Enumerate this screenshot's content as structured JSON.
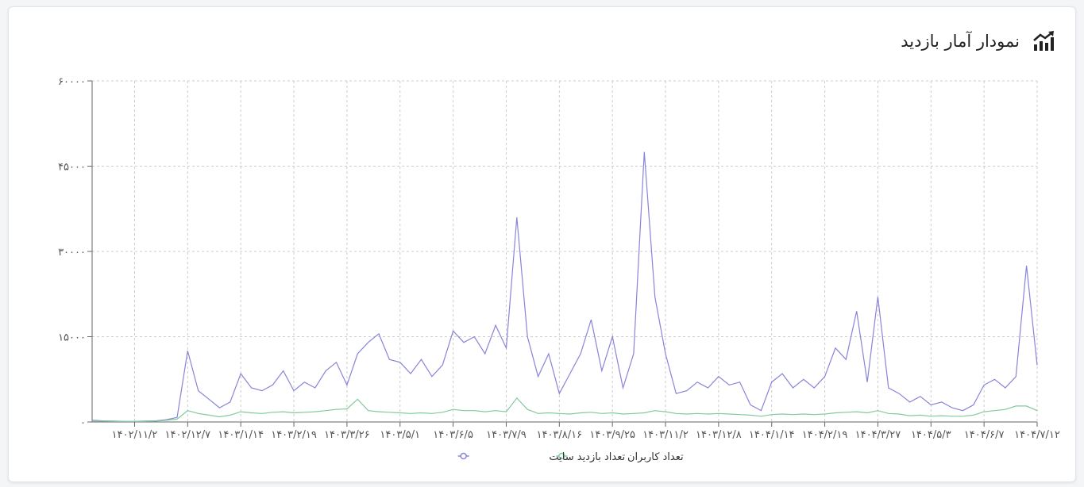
{
  "chart_data": {
    "type": "line",
    "title": "نمودار آمار بازدید",
    "categories": [
      null,
      null,
      null,
      null,
      "۱۴۰۲/۱۱/۲",
      null,
      null,
      null,
      null,
      "۱۴۰۲/۱۲/۷",
      null,
      null,
      null,
      null,
      "۱۴۰۳/۱/۱۴",
      null,
      null,
      null,
      null,
      "۱۴۰۳/۲/۱۹",
      null,
      null,
      null,
      null,
      "۱۴۰۳/۳/۲۶",
      null,
      null,
      null,
      null,
      "۱۴۰۳/۵/۱",
      null,
      null,
      null,
      null,
      "۱۴۰۳/۶/۵",
      null,
      null,
      null,
      null,
      "۱۴۰۳/۷/۹",
      null,
      null,
      null,
      null,
      "۱۴۰۳/۸/۱۶",
      null,
      null,
      null,
      null,
      "۱۴۰۳/۹/۲۵",
      null,
      null,
      null,
      null,
      "۱۴۰۳/۱۱/۲",
      null,
      null,
      null,
      null,
      "۱۴۰۳/۱۲/۸",
      null,
      null,
      null,
      null,
      "۱۴۰۴/۱/۱۴",
      null,
      null,
      null,
      null,
      "۱۴۰۴/۲/۱۹",
      null,
      null,
      null,
      null,
      "۱۴۰۴/۳/۲۷",
      null,
      null,
      null,
      null,
      "۱۴۰۴/۵/۳",
      null,
      null,
      null,
      null,
      "۱۴۰۴/۶/۷",
      null,
      null,
      null,
      null,
      "۱۴۰۴/۷/۱۲"
    ],
    "series": [
      {
        "name": "تعداد بازدید سایت",
        "color": "#8884d8",
        "values": [
          300,
          200,
          150,
          100,
          100,
          150,
          200,
          400,
          800,
          12500,
          5500,
          4000,
          2500,
          3500,
          8500,
          6000,
          5500,
          6500,
          9000,
          5500,
          7000,
          6000,
          9000,
          10500,
          6500,
          12000,
          14000,
          15500,
          11000,
          10500,
          8500,
          11000,
          8000,
          10000,
          16000,
          14000,
          15000,
          12000,
          17000,
          13000,
          36000,
          15000,
          8000,
          12000,
          5000,
          8500,
          12000,
          18000,
          9000,
          15000,
          6000,
          12000,
          47500,
          22000,
          12000,
          5000,
          5500,
          7000,
          6000,
          8000,
          6500,
          7000,
          3000,
          2000,
          7000,
          8500,
          6000,
          7500,
          6000,
          8000,
          13000,
          11000,
          19500,
          7000,
          22000,
          6000,
          5000,
          3500,
          4500,
          3000,
          3500,
          2500,
          2000,
          3000,
          6500,
          7500,
          6000,
          8000,
          27500,
          10000
        ]
      },
      {
        "name": "تعداد کاربران",
        "color": "#82ca9d",
        "values": [
          200,
          150,
          100,
          80,
          80,
          100,
          150,
          300,
          500,
          2000,
          1500,
          1200,
          900,
          1200,
          1800,
          1600,
          1500,
          1700,
          1800,
          1600,
          1700,
          1800,
          2000,
          2200,
          2300,
          4000,
          2000,
          1800,
          1700,
          1600,
          1500,
          1600,
          1500,
          1700,
          2200,
          2000,
          2000,
          1800,
          2000,
          1800,
          4200,
          2200,
          1500,
          1600,
          1500,
          1400,
          1600,
          1700,
          1500,
          1600,
          1400,
          1500,
          1600,
          2000,
          1800,
          1500,
          1400,
          1500,
          1400,
          1500,
          1400,
          1300,
          1200,
          1000,
          1300,
          1400,
          1300,
          1400,
          1300,
          1400,
          1600,
          1700,
          1800,
          1600,
          2000,
          1500,
          1400,
          1100,
          1200,
          1000,
          1100,
          1000,
          1000,
          1200,
          1800,
          2000,
          2200,
          2800,
          2800,
          2000
        ]
      }
    ],
    "ylim": [
      0,
      60000
    ],
    "yticks": [
      {
        "value": 0,
        "label": "۰"
      },
      {
        "value": 15000,
        "label": "۱۵۰۰۰"
      },
      {
        "value": 30000,
        "label": "۳۰۰۰۰"
      },
      {
        "value": 45000,
        "label": "۴۵۰۰۰"
      },
      {
        "value": 60000,
        "label": "۶۰۰۰۰"
      }
    ],
    "grid": true
  }
}
